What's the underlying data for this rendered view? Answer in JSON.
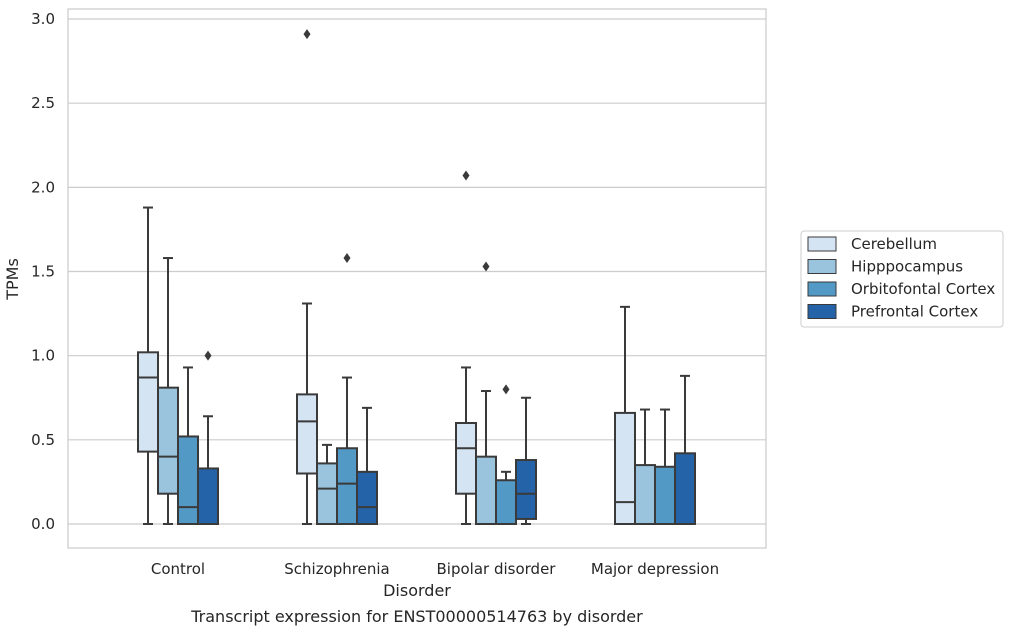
{
  "chart_data": {
    "type": "box",
    "caption": "Transcript expression for ENST00000514763 by disorder",
    "xlabel": "Disorder",
    "ylabel": "TPMs",
    "ylim": [
      -0.14,
      3.06
    ],
    "yticks": [
      0.0,
      0.5,
      1.0,
      1.5,
      2.0,
      2.5,
      3.0
    ],
    "ytick_labels": [
      "0.0",
      "0.5",
      "1.0",
      "1.5",
      "2.0",
      "2.5",
      "3.0"
    ],
    "grid": "horizontal",
    "legend_position": "right",
    "categories": [
      "Control",
      "Schizophrenia",
      "Bipolar disorder",
      "Major depression"
    ],
    "series": [
      {
        "name": "Cerebellum",
        "color": "#d5e4f3",
        "boxes": [
          {
            "whislo": 0.0,
            "q1": 0.43,
            "med": 0.87,
            "q3": 1.02,
            "whishi": 1.88,
            "fliers": []
          },
          {
            "whislo": 0.0,
            "q1": 0.3,
            "med": 0.61,
            "q3": 0.77,
            "whishi": 1.31,
            "fliers": [
              2.91
            ]
          },
          {
            "whislo": 0.0,
            "q1": 0.18,
            "med": 0.45,
            "q3": 0.6,
            "whishi": 0.93,
            "fliers": [
              2.07
            ]
          },
          {
            "whislo": 0.0,
            "q1": 0.0,
            "med": 0.13,
            "q3": 0.66,
            "whishi": 1.29,
            "fliers": []
          }
        ]
      },
      {
        "name": "Hipppocampus",
        "color": "#9ac4de",
        "boxes": [
          {
            "whislo": 0.0,
            "q1": 0.18,
            "med": 0.4,
            "q3": 0.81,
            "whishi": 1.58,
            "fliers": []
          },
          {
            "whislo": 0.0,
            "q1": 0.0,
            "med": 0.21,
            "q3": 0.36,
            "whishi": 0.47,
            "fliers": []
          },
          {
            "whislo": 0.0,
            "q1": 0.0,
            "med": 0.0,
            "q3": 0.4,
            "whishi": 0.79,
            "fliers": [
              1.53
            ]
          },
          {
            "whislo": 0.0,
            "q1": 0.0,
            "med": 0.0,
            "q3": 0.35,
            "whishi": 0.68,
            "fliers": []
          }
        ]
      },
      {
        "name": "Orbitofontal Cortex",
        "color": "#5399c6",
        "boxes": [
          {
            "whislo": 0.0,
            "q1": 0.0,
            "med": 0.1,
            "q3": 0.52,
            "whishi": 0.93,
            "fliers": []
          },
          {
            "whislo": 0.0,
            "q1": 0.0,
            "med": 0.24,
            "q3": 0.45,
            "whishi": 0.87,
            "fliers": [
              1.58
            ]
          },
          {
            "whislo": 0.0,
            "q1": 0.0,
            "med": 0.0,
            "q3": 0.26,
            "whishi": 0.31,
            "fliers": [
              0.8
            ]
          },
          {
            "whislo": 0.0,
            "q1": 0.0,
            "med": 0.0,
            "q3": 0.34,
            "whishi": 0.68,
            "fliers": []
          }
        ]
      },
      {
        "name": "Prefrontal Cortex",
        "color": "#2563a9",
        "boxes": [
          {
            "whislo": 0.0,
            "q1": 0.0,
            "med": 0.0,
            "q3": 0.33,
            "whishi": 0.64,
            "fliers": [
              1.0
            ]
          },
          {
            "whislo": 0.0,
            "q1": 0.0,
            "med": 0.1,
            "q3": 0.31,
            "whishi": 0.69,
            "fliers": []
          },
          {
            "whislo": 0.0,
            "q1": 0.03,
            "med": 0.18,
            "q3": 0.38,
            "whishi": 0.75,
            "fliers": []
          },
          {
            "whislo": 0.0,
            "q1": 0.0,
            "med": 0.0,
            "q3": 0.42,
            "whishi": 0.88,
            "fliers": []
          }
        ]
      }
    ]
  }
}
